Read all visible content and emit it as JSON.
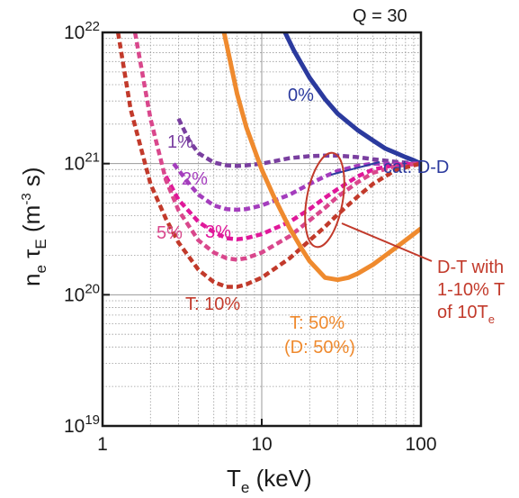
{
  "chart_data": {
    "type": "line",
    "title": "Q = 30",
    "xlabel": {
      "main": "T",
      "sub": "e",
      "rest": " (keV)"
    },
    "ylabel": {
      "n": "n",
      "n_sub": "e",
      "tau": " τ",
      "tau_sub": "E",
      "unit_open": " (m",
      "unit_sup": "-3",
      "unit_close": " s)"
    },
    "x_scale": "log",
    "y_scale": "log",
    "xlim": [
      1,
      100
    ],
    "ylim": [
      1e+19,
      1e+22
    ],
    "x_ticks": [
      {
        "value": 1,
        "label": "1"
      },
      {
        "value": 10,
        "label": "10"
      },
      {
        "value": 100,
        "label": "100"
      }
    ],
    "y_ticks": [
      {
        "value": 1e+19,
        "base": "10",
        "exp": "19"
      },
      {
        "value": 1e+20,
        "base": "10",
        "exp": "20"
      },
      {
        "value": 1e+21,
        "base": "10",
        "exp": "21"
      },
      {
        "value": 1e+22,
        "base": "10",
        "exp": "22"
      }
    ],
    "grid": true,
    "series": [
      {
        "name": "0%",
        "color": "#2b3a9e",
        "style": "solid",
        "x": [
          14,
          16,
          20,
          25,
          30,
          40,
          50,
          60,
          70,
          80,
          90,
          100
        ],
        "y": [
          1e+22,
          7.2e+21,
          4.5e+21,
          3.1e+21,
          2.4e+21,
          1.8e+21,
          1.5e+21,
          1.3e+21,
          1.2e+21,
          1.12e+21,
          1.06e+21,
          1e+21
        ]
      },
      {
        "name": "1%",
        "color": "#7a3fa0",
        "style": "dashed",
        "x": [
          3.0,
          3.5,
          4,
          5,
          6,
          7,
          8,
          10,
          15,
          20,
          25,
          30,
          40,
          50,
          70,
          100
        ],
        "y": [
          2.2e+21,
          1.5e+21,
          1.2e+21,
          1.02e+21,
          9.7e+20,
          9.6e+20,
          9.7e+20,
          1e+21,
          1.1e+21,
          1.14e+21,
          1.15e+21,
          1.15e+21,
          1.12e+21,
          1.08e+21,
          1.03e+21,
          1e+21
        ]
      },
      {
        "name": "2%",
        "color": "#a43dbd",
        "style": "dashed",
        "x": [
          2.8,
          3.5,
          4,
          5,
          6,
          7,
          8,
          10,
          15,
          20,
          25,
          30,
          40,
          50,
          70,
          100
        ],
        "y": [
          1e+21,
          7e+20,
          5.8e+20,
          4.8e+20,
          4.5e+20,
          4.45e+20,
          4.5e+20,
          4.8e+20,
          5.8e+20,
          7e+20,
          8e+20,
          8.8e+20,
          9.6e+20,
          1e+21,
          1e+21,
          1e+21
        ]
      },
      {
        "name": "3%",
        "color": "#e0189a",
        "style": "dashed",
        "x": [
          2.5,
          3,
          4,
          5,
          6,
          7,
          8,
          10,
          15,
          20,
          25,
          30,
          40,
          50,
          70,
          100
        ],
        "y": [
          8e+20,
          5.3e+20,
          3.6e+20,
          3e+20,
          2.7e+20,
          2.65e+20,
          2.7e+20,
          2.9e+20,
          3.6e+20,
          4.5e+20,
          5.5e+20,
          6.4e+20,
          8e+20,
          9e+20,
          9.8e+20,
          1e+21
        ]
      },
      {
        "name": "5%",
        "color": "#d9478c",
        "style": "dashed",
        "x": [
          1.6,
          2,
          2.5,
          3,
          4,
          5,
          6,
          7,
          8,
          10,
          15,
          20,
          25,
          30,
          40,
          50,
          70,
          100
        ],
        "y": [
          1e+22,
          2.2e+21,
          7.5e+20,
          4.4e+20,
          2.6e+20,
          2.1e+20,
          1.9e+20,
          1.85e+20,
          1.9e+20,
          2.1e+20,
          2.8e+20,
          3.7e+20,
          4.6e+20,
          5.6e+20,
          7.2e+20,
          8.5e+20,
          9.6e+20,
          1e+21
        ]
      },
      {
        "name": "T: 10%",
        "color": "#c23a2b",
        "style": "dashed",
        "x": [
          1.25,
          1.5,
          2,
          2.5,
          3,
          4,
          5,
          6,
          7,
          8,
          10,
          15,
          20,
          25,
          30,
          40,
          50,
          70,
          100
        ],
        "y": [
          1e+22,
          2.6e+21,
          7e+20,
          3.8e+20,
          2.5e+20,
          1.55e+20,
          1.25e+20,
          1.15e+20,
          1.15e+20,
          1.2e+20,
          1.35e+20,
          1.9e+20,
          2.6e+20,
          3.3e+20,
          4.1e+20,
          5.6e+20,
          7e+20,
          9e+20,
          1e+21
        ]
      },
      {
        "name": "T: 50%",
        "color": "#ef8a2e",
        "style": "solid",
        "x": [
          5.8,
          7,
          8,
          10,
          12,
          15,
          18,
          20,
          25,
          30,
          35,
          40,
          50,
          60,
          70,
          80,
          90,
          100
        ],
        "y": [
          1e+22,
          3.4e+21,
          1.9e+21,
          9e+20,
          5.5e+20,
          3.2e+20,
          2.2e+20,
          1.8e+20,
          1.35e+20,
          1.3e+20,
          1.35e+20,
          1.45e+20,
          1.7e+20,
          2e+20,
          2.3e+20,
          2.6e+20,
          2.9e+20,
          3.2e+20
        ]
      }
    ],
    "annotations": [
      {
        "text": "Q = 30",
        "color": "#1a1a1a"
      },
      {
        "text": "0%",
        "color": "#2b3a9e"
      },
      {
        "text": "1%",
        "color": "#7a3fa0"
      },
      {
        "text": "2%",
        "color": "#a43dbd"
      },
      {
        "text": "3%",
        "color": "#e0189a"
      },
      {
        "text": "5%",
        "color": "#d9478c"
      },
      {
        "text": "T: 10%",
        "color": "#c23a2b"
      },
      {
        "text": "cat. D-D",
        "color": "#2b3a9e"
      },
      {
        "text": "T: 50%",
        "color": "#ef8a2e"
      },
      {
        "text": "(D: 50%)",
        "color": "#ef8a2e"
      },
      {
        "text": "D-T with",
        "color": "#c23a2b"
      },
      {
        "text": "1-10% T",
        "color": "#c23a2b"
      },
      {
        "text": "of 10T",
        "sub": "e",
        "color": "#c23a2b"
      }
    ]
  }
}
